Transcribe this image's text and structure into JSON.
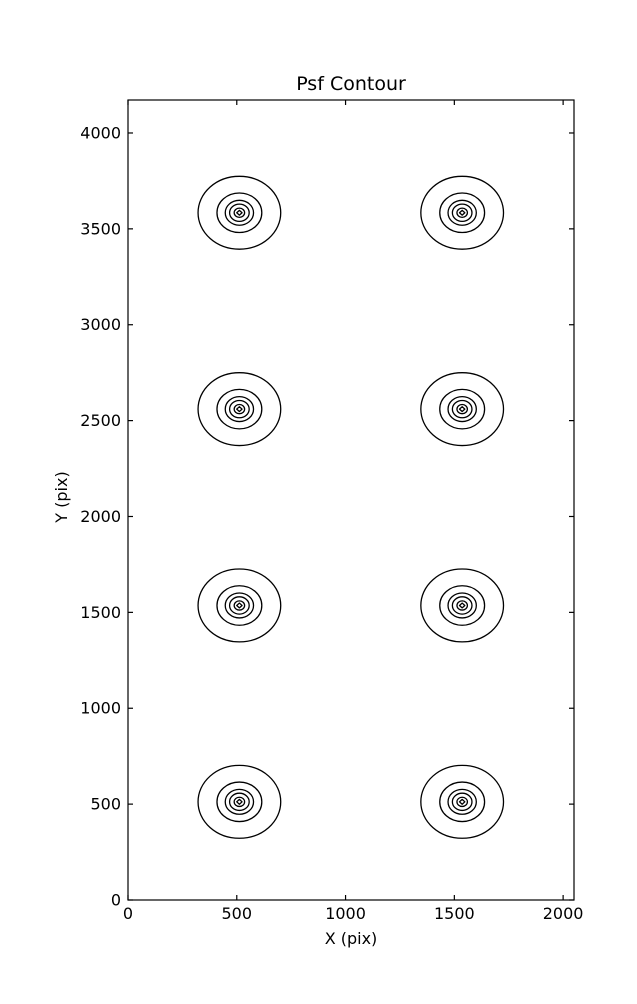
{
  "chart_data": {
    "type": "contour",
    "title": "Psf Contour",
    "xlabel": "X (pix)",
    "ylabel": "Y (pix)",
    "xlim": [
      0,
      2050
    ],
    "ylim": [
      0,
      4172
    ],
    "x_ticks": [
      "0",
      "500",
      "1000",
      "1500",
      "2000"
    ],
    "y_ticks": [
      "0",
      "500",
      "1000",
      "1500",
      "2000",
      "2500",
      "3000",
      "3500",
      "4000"
    ],
    "x_tick_values": [
      0,
      500,
      1000,
      1500,
      2000
    ],
    "y_tick_values": [
      0,
      500,
      1000,
      1500,
      2000,
      2500,
      3000,
      3500,
      4000
    ],
    "grid": false,
    "legend": "none",
    "line_color": "#000000",
    "background_color": "#ffffff",
    "ticks_direction": "in",
    "ticks_sides": [
      "bottom",
      "top",
      "left",
      "right"
    ],
    "psf_centers": [
      [
        512,
        512
      ],
      [
        1536,
        512
      ],
      [
        512,
        1536
      ],
      [
        1536,
        1536
      ],
      [
        512,
        2560
      ],
      [
        1536,
        2560
      ],
      [
        512,
        3584
      ],
      [
        1536,
        3584
      ]
    ],
    "contour_radii_pix": [
      190,
      103,
      65,
      45,
      24,
      10
    ],
    "innermost_shape": "diamond"
  }
}
